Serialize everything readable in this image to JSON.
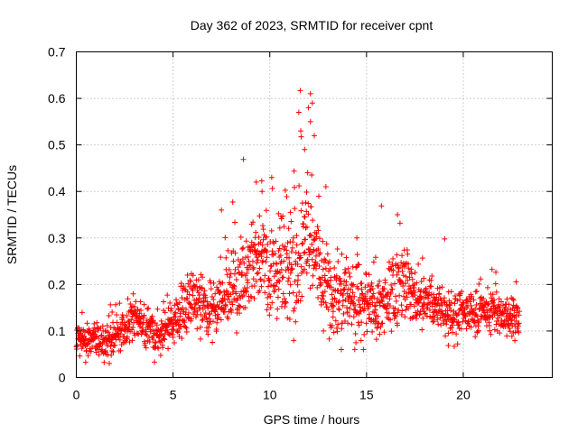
{
  "chart_data": {
    "type": "scatter",
    "title": "Day 362 of 2023, SRMTID for receiver cpnt",
    "xlabel": "GPS time / hours",
    "ylabel": "SRMTID / TECUs",
    "xlim": [
      0,
      24.6
    ],
    "ylim": [
      0,
      0.7
    ],
    "x_ticks": [
      0,
      5,
      10,
      15,
      20
    ],
    "x_tick_labels": [
      "0",
      "5",
      "10",
      "15",
      "20"
    ],
    "y_ticks": [
      0,
      0.1,
      0.2,
      0.3,
      0.4,
      0.5,
      0.6,
      0.7
    ],
    "y_tick_labels": [
      "0",
      "0.1",
      "0.2",
      "0.3",
      "0.4",
      "0.5",
      "0.6",
      "0.7"
    ],
    "grid": true,
    "marker": "+",
    "color": "#ff0000",
    "series": [
      {
        "name": "SRMTID",
        "trend": [
          [
            0.0,
            0.08
          ],
          [
            0.5,
            0.075
          ],
          [
            1.0,
            0.08
          ],
          [
            1.5,
            0.075
          ],
          [
            2.0,
            0.08
          ],
          [
            2.5,
            0.1
          ],
          [
            3.0,
            0.13
          ],
          [
            3.5,
            0.11
          ],
          [
            4.0,
            0.09
          ],
          [
            4.5,
            0.1
          ],
          [
            5.0,
            0.12
          ],
          [
            5.5,
            0.14
          ],
          [
            6.0,
            0.16
          ],
          [
            6.5,
            0.17
          ],
          [
            7.0,
            0.14
          ],
          [
            7.5,
            0.17
          ],
          [
            8.0,
            0.19
          ],
          [
            8.5,
            0.2
          ],
          [
            9.0,
            0.25
          ],
          [
            9.5,
            0.27
          ],
          [
            10.0,
            0.24
          ],
          [
            10.5,
            0.22
          ],
          [
            11.0,
            0.24
          ],
          [
            11.5,
            0.27
          ],
          [
            12.0,
            0.3
          ],
          [
            12.5,
            0.24
          ],
          [
            13.0,
            0.19
          ],
          [
            13.5,
            0.18
          ],
          [
            14.0,
            0.17
          ],
          [
            14.5,
            0.16
          ],
          [
            15.0,
            0.15
          ],
          [
            15.5,
            0.15
          ],
          [
            16.0,
            0.17
          ],
          [
            16.5,
            0.19
          ],
          [
            17.0,
            0.2
          ],
          [
            17.5,
            0.18
          ],
          [
            18.0,
            0.17
          ],
          [
            18.5,
            0.15
          ],
          [
            19.0,
            0.14
          ],
          [
            19.5,
            0.13
          ],
          [
            20.0,
            0.14
          ],
          [
            20.5,
            0.14
          ],
          [
            21.0,
            0.14
          ],
          [
            21.5,
            0.14
          ],
          [
            22.0,
            0.13
          ],
          [
            22.5,
            0.13
          ],
          [
            22.9,
            0.13
          ]
        ],
        "spread": [
          [
            0.0,
            0.03
          ],
          [
            3.0,
            0.04
          ],
          [
            5.0,
            0.05
          ],
          [
            8.0,
            0.07
          ],
          [
            9.5,
            0.09
          ],
          [
            11.5,
            0.12
          ],
          [
            12.5,
            0.08
          ],
          [
            14.0,
            0.06
          ],
          [
            16.5,
            0.07
          ],
          [
            18.0,
            0.05
          ],
          [
            22.9,
            0.04
          ]
        ],
        "n_points": 1800,
        "x_start": 0.0,
        "x_end": 22.9,
        "peaks": [
          {
            "x": 12.1,
            "y": 0.61
          },
          {
            "x": 12.2,
            "y": 0.59
          },
          {
            "x": 12.1,
            "y": 0.55
          },
          {
            "x": 11.5,
            "y": 0.57
          },
          {
            "x": 11.6,
            "y": 0.53
          },
          {
            "x": 11.8,
            "y": 0.49
          },
          {
            "x": 12.3,
            "y": 0.52
          },
          {
            "x": 12.0,
            "y": 0.58
          },
          {
            "x": 9.3,
            "y": 0.42
          },
          {
            "x": 9.6,
            "y": 0.4
          },
          {
            "x": 10.1,
            "y": 0.43
          },
          {
            "x": 12.9,
            "y": 0.41
          },
          {
            "x": 7.5,
            "y": 0.36
          },
          {
            "x": 16.6,
            "y": 0.35
          },
          {
            "x": 14.5,
            "y": 0.3
          },
          {
            "x": 13.7,
            "y": 0.06
          }
        ],
        "seed": 362
      }
    ]
  }
}
